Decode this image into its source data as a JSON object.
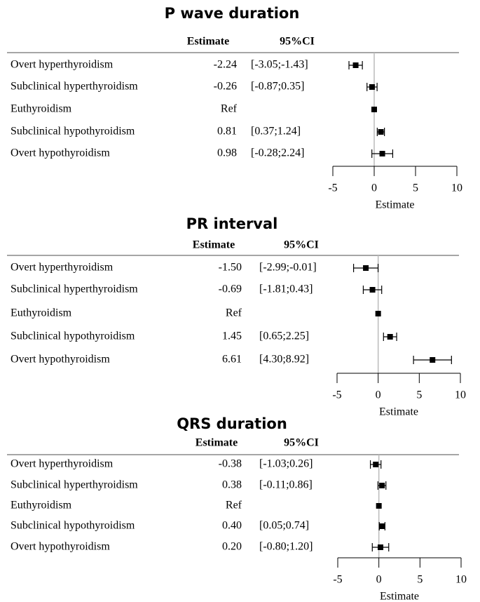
{
  "chart_data": [
    {
      "type": "forest",
      "title": "P wave duration",
      "columns": [
        "Estimate",
        "95%CI"
      ],
      "categories": [
        "Overt hyperthyroidism",
        "Subclinical hyperthyroidism",
        "Euthyroidism",
        "Subclinical hypothyroidism",
        "Overt hypothyroidism"
      ],
      "values": [
        -2.24,
        -0.26,
        0,
        0.81,
        0.98
      ],
      "value_labels": [
        "-2.24",
        "-0.26",
        "Ref",
        "0.81",
        "0.98"
      ],
      "lower": [
        -3.05,
        -0.87,
        null,
        0.37,
        -0.28
      ],
      "upper": [
        -1.43,
        0.35,
        null,
        1.24,
        2.24
      ],
      "ci_labels": [
        "[-3.05;-1.43]",
        "[-0.87;0.35]",
        null,
        "[0.37;1.24]",
        "[-0.28;2.24]"
      ],
      "xlim": [
        -5,
        10
      ],
      "xticks": [
        -5,
        0,
        5,
        10
      ],
      "xlabel": "Estimate",
      "color": "#000000"
    },
    {
      "type": "forest",
      "title": "PR interval",
      "columns": [
        "Estimate",
        "95%CI"
      ],
      "categories": [
        "Overt hyperthyroidism",
        "Subclinical hyperthyroidism",
        "Euthyroidism",
        "Subclinical hypothyroidism",
        "Overt hypothyroidism"
      ],
      "values": [
        -1.5,
        -0.69,
        0,
        1.45,
        6.61
      ],
      "value_labels": [
        "-1.50",
        "-0.69",
        "Ref",
        "1.45",
        "6.61"
      ],
      "lower": [
        -2.99,
        -1.81,
        null,
        0.65,
        4.3
      ],
      "upper": [
        -0.01,
        0.43,
        null,
        2.25,
        8.92
      ],
      "ci_labels": [
        "[-2.99;-0.01]",
        "[-1.81;0.43]",
        null,
        "[0.65;2.25]",
        "[4.30;8.92]"
      ],
      "xlim": [
        -5,
        10
      ],
      "xticks": [
        -5,
        0,
        5,
        10
      ],
      "xlabel": "Estimate",
      "color": "#000000"
    },
    {
      "type": "forest",
      "title": "QRS duration",
      "columns": [
        "Estimate",
        "95%CI"
      ],
      "categories": [
        "Overt hyperthyroidism",
        "Subclinical hyperthyroidism",
        "Euthyroidism",
        "Subclinical hypothyroidism",
        "Overt hypothyroidism"
      ],
      "values": [
        -0.38,
        0.38,
        0,
        0.4,
        0.2
      ],
      "value_labels": [
        "-0.38",
        "0.38",
        "Ref",
        "0.40",
        "0.20"
      ],
      "lower": [
        -1.03,
        -0.11,
        null,
        0.05,
        -0.8
      ],
      "upper": [
        0.26,
        0.86,
        null,
        0.74,
        1.2
      ],
      "ci_labels": [
        "[-1.03;0.26]",
        "[-0.11;0.86]",
        null,
        "[0.05;0.74]",
        "[-0.80;1.20]"
      ],
      "xlim": [
        -5,
        10
      ],
      "xticks": [
        -5,
        0,
        5,
        10
      ],
      "xlabel": "Estimate",
      "color": "#000000"
    }
  ]
}
